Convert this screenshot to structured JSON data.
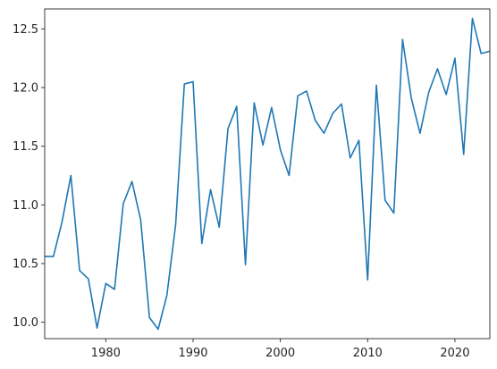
{
  "chart_data": {
    "type": "line",
    "x": [
      1973,
      1974,
      1975,
      1976,
      1977,
      1978,
      1979,
      1980,
      1981,
      1982,
      1983,
      1984,
      1985,
      1986,
      1987,
      1988,
      1989,
      1990,
      1991,
      1992,
      1993,
      1994,
      1995,
      1996,
      1997,
      1998,
      1999,
      2000,
      2001,
      2002,
      2003,
      2004,
      2005,
      2006,
      2007,
      2008,
      2009,
      2010,
      2011,
      2012,
      2013,
      2014,
      2015,
      2016,
      2017,
      2018,
      2019,
      2020,
      2021,
      2022,
      2023,
      2024
    ],
    "series": [
      {
        "values": [
          10.56,
          10.56,
          10.86,
          11.25,
          10.44,
          10.37,
          9.95,
          10.33,
          10.28,
          11.01,
          11.2,
          10.87,
          10.04,
          9.94,
          10.23,
          10.83,
          12.03,
          12.05,
          10.67,
          11.13,
          10.81,
          11.65,
          11.84,
          10.49,
          11.87,
          11.51,
          11.83,
          11.47,
          11.25,
          11.93,
          11.97,
          11.72,
          11.61,
          11.78,
          11.86,
          11.4,
          11.55,
          10.36,
          12.02,
          11.04,
          10.93,
          12.41,
          11.91,
          11.61,
          11.96,
          12.16,
          11.94,
          12.25,
          11.43,
          12.59,
          12.29,
          12.31
        ],
        "color": "#1f77b4"
      }
    ],
    "xlim": [
      1973,
      2024
    ],
    "ylim": [
      9.86,
      12.67
    ],
    "xticks": [
      1980,
      1990,
      2000,
      2010,
      2020
    ],
    "yticks": [
      10.0,
      10.5,
      11.0,
      11.5,
      12.0,
      12.5
    ],
    "xtick_labels": [
      "1980",
      "1990",
      "2000",
      "2010",
      "2020"
    ],
    "ytick_labels": [
      "10.0",
      "10.5",
      "11.0",
      "11.5",
      "12.0",
      "12.5"
    ],
    "title": "",
    "xlabel": "",
    "ylabel": "",
    "grid": false,
    "legend": false
  }
}
